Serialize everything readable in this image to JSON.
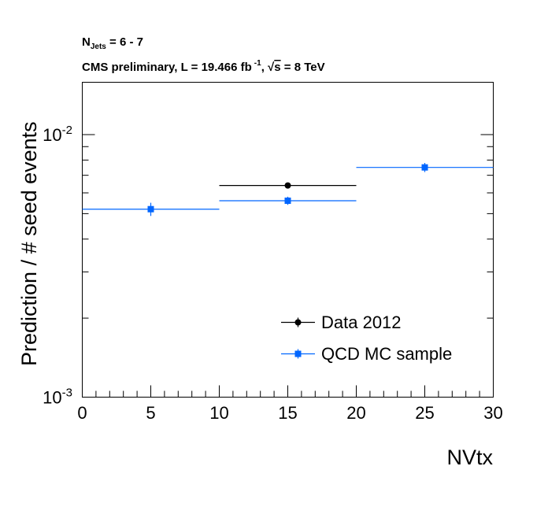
{
  "chart_data": {
    "type": "scatter",
    "header": {
      "line1_prefix": "N",
      "line1_sub": "Jets",
      "line1_suffix": " = 6 - 7",
      "line2_prefix": "CMS preliminary, L = 19.466 fb",
      "line2_sup": "-1",
      "line2_mid": ", ",
      "line2_sqrt": "√",
      "line2_s": "s",
      "line2_suffix": " = 8 TeV"
    },
    "xlabel": "NVtx",
    "ylabel": "Prediction / # seed events",
    "xlim": [
      0,
      30
    ],
    "ylim": [
      0.001,
      0.0165
    ],
    "yscale": "log",
    "x_ticks": [
      0,
      5,
      10,
      15,
      20,
      25,
      30
    ],
    "y_tick_labels": [
      {
        "value": 0.01,
        "base": "10",
        "exp": "-2"
      },
      {
        "value": 0.001,
        "base": "10",
        "exp": "-3"
      }
    ],
    "legend_position": "bottom-right",
    "series": [
      {
        "name": "Data 2012",
        "color": "#000000",
        "marker": "circle",
        "points": [
          {
            "x": 15,
            "xlow": 10,
            "xhigh": 20,
            "y": 0.0064,
            "yerr": 0.0001
          }
        ]
      },
      {
        "name": "QCD MC sample",
        "color": "#0066ff",
        "marker": "square",
        "points": [
          {
            "x": 5,
            "xlow": 0,
            "xhigh": 10,
            "y": 0.0052,
            "yerr": 0.0003
          },
          {
            "x": 15,
            "xlow": 10,
            "xhigh": 20,
            "y": 0.0056,
            "yerr": 0.0002
          },
          {
            "x": 25,
            "xlow": 20,
            "xhigh": 30,
            "y": 0.0075,
            "yerr": 0.0003
          }
        ]
      }
    ]
  }
}
